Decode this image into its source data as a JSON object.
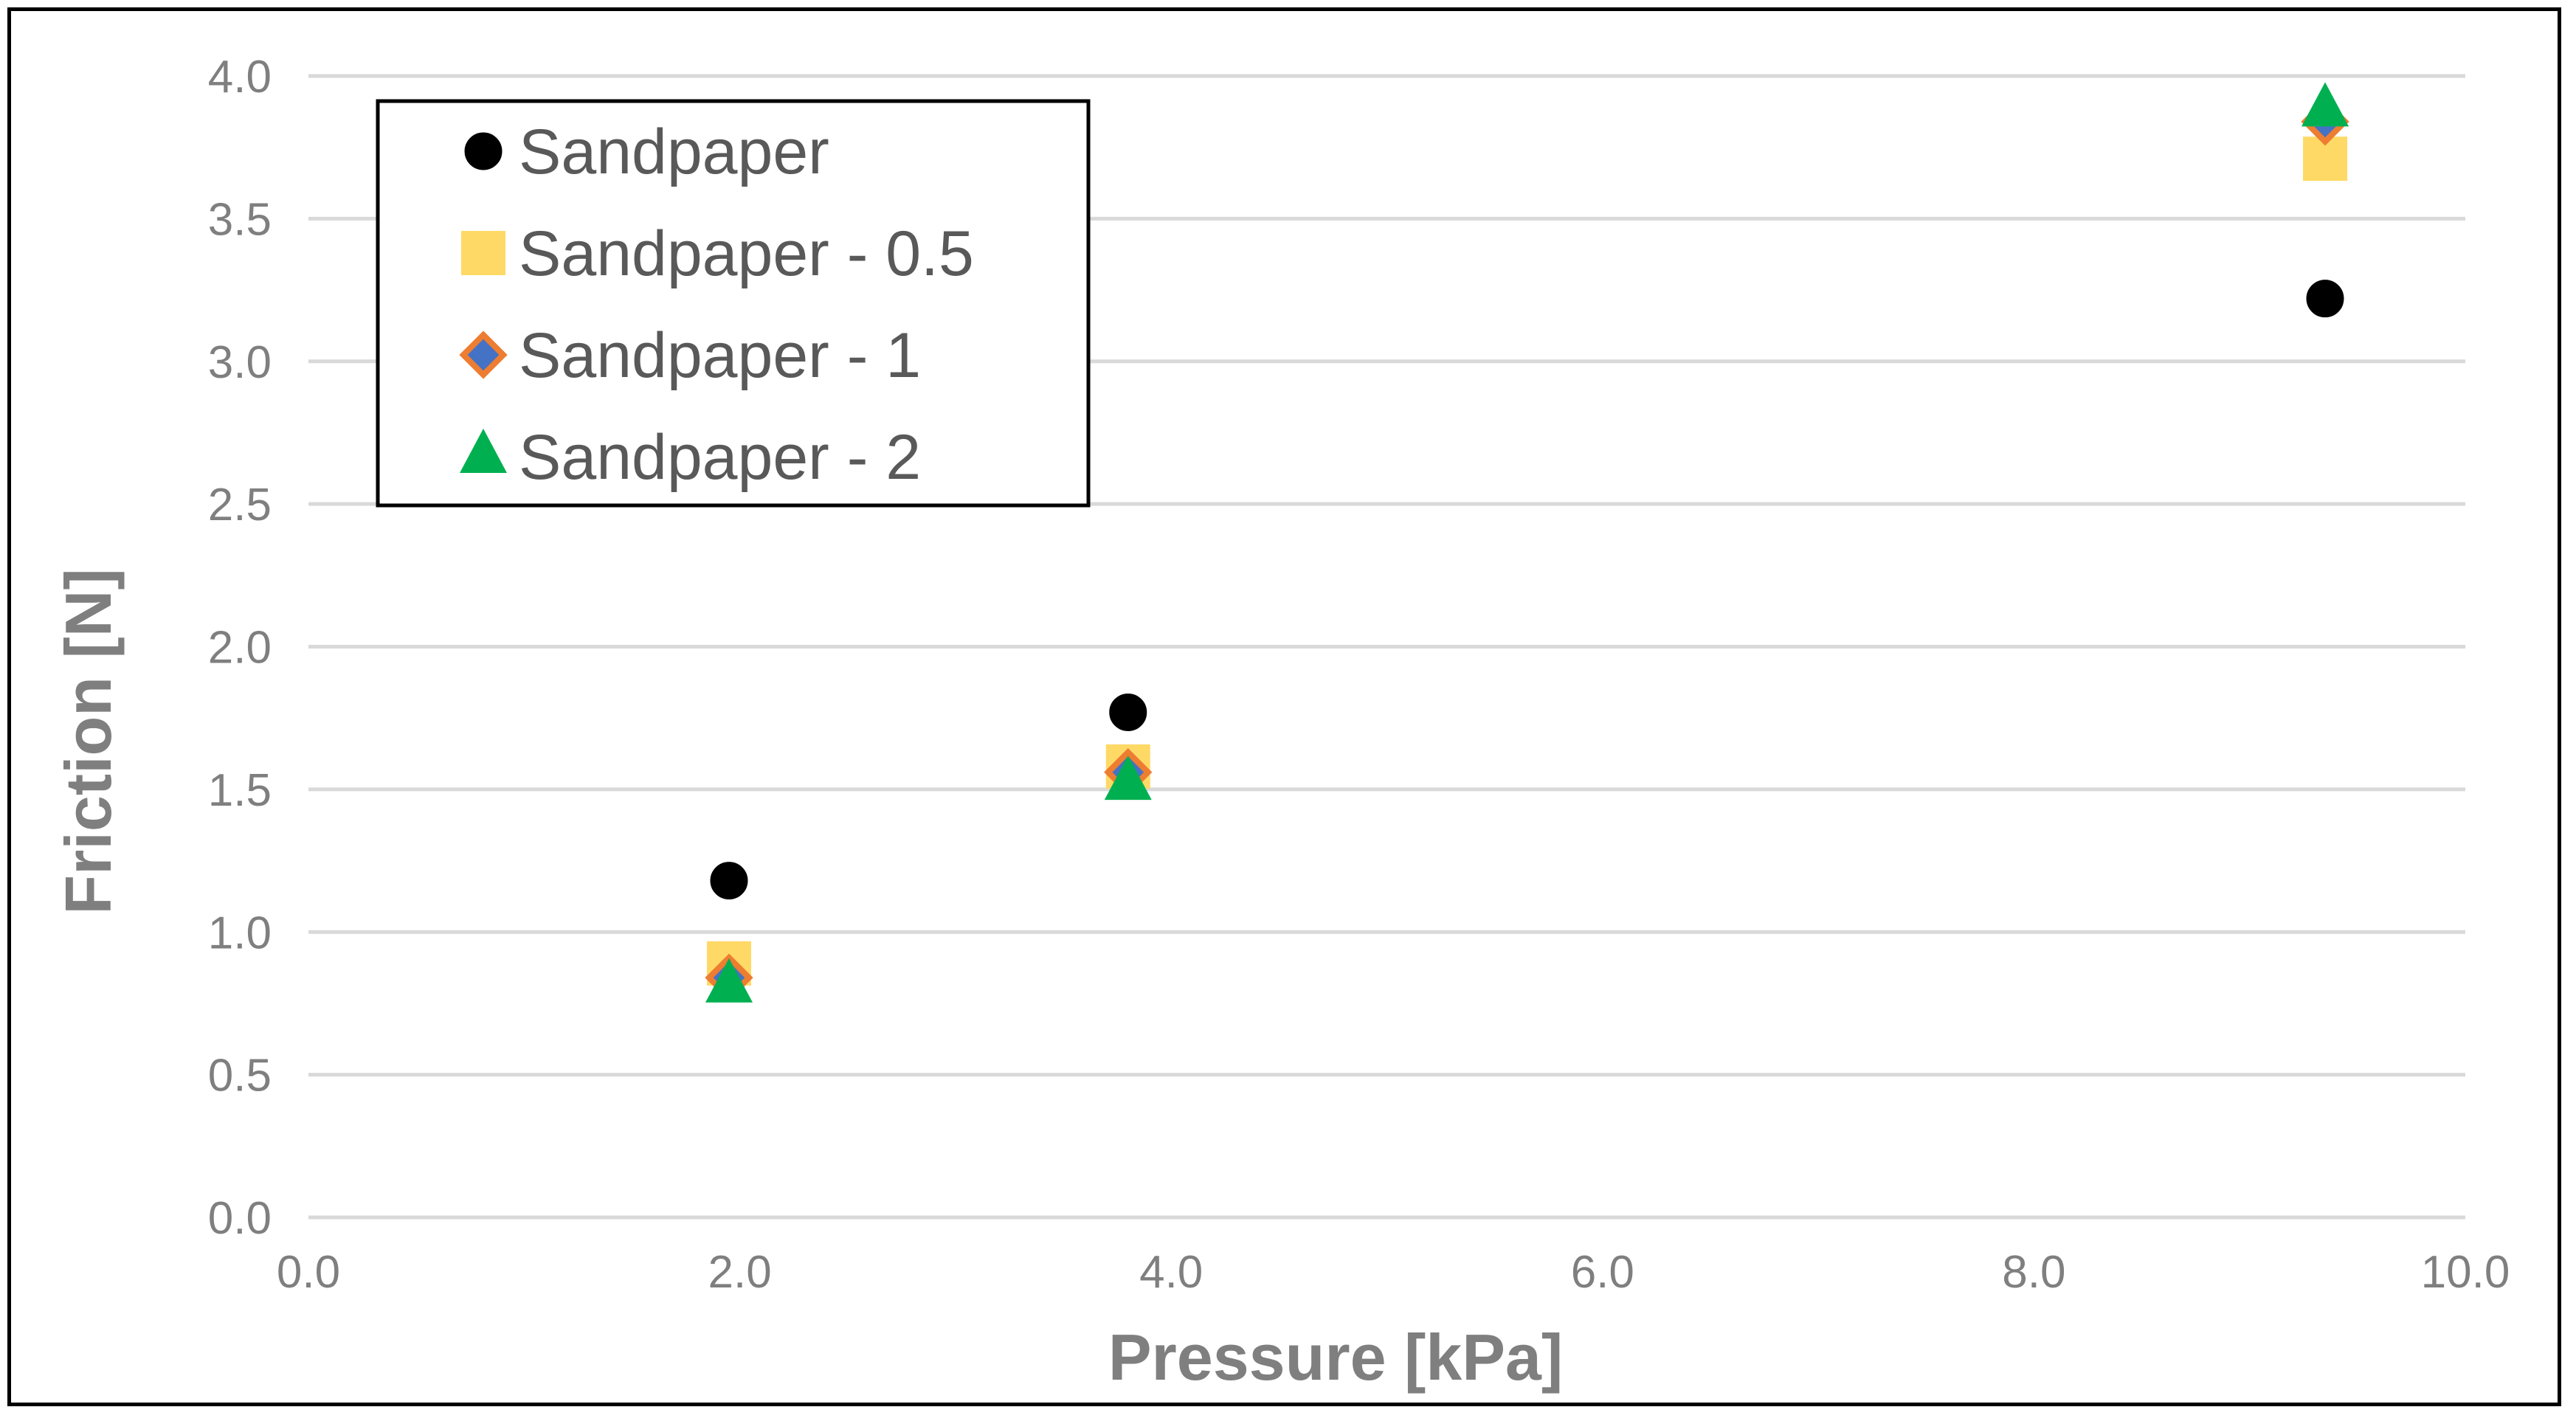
{
  "chart_data": {
    "type": "scatter",
    "xlabel": "Pressure [kPa]",
    "ylabel": "Friction [N]",
    "xlim": [
      0,
      10
    ],
    "ylim": [
      0,
      4
    ],
    "x_ticks": [
      "0.0",
      "2.0",
      "4.0",
      "6.0",
      "8.0",
      "10.0"
    ],
    "y_ticks": [
      "0.0",
      "0.5",
      "1.0",
      "1.5",
      "2.0",
      "2.5",
      "3.0",
      "3.5",
      "4.0"
    ],
    "grid": "horizontal",
    "legend_position": "top-left",
    "series": [
      {
        "name": "Sandpaper",
        "marker": "circle",
        "color": "#000000",
        "x": [
          1.95,
          3.8,
          9.35
        ],
        "y": [
          1.18,
          1.77,
          3.22
        ]
      },
      {
        "name": "Sandpaper - 0.5",
        "marker": "square",
        "color": "#FFD966",
        "x": [
          1.95,
          3.8,
          9.35
        ],
        "y": [
          0.89,
          1.58,
          3.71
        ]
      },
      {
        "name": "Sandpaper - 1",
        "marker": "diamond",
        "color": "#4472C4",
        "edge_color": "#ED7D31",
        "x": [
          1.95,
          3.8,
          9.35
        ],
        "y": [
          0.84,
          1.56,
          3.84
        ]
      },
      {
        "name": "Sandpaper - 2",
        "marker": "triangle",
        "color": "#00B050",
        "x": [
          1.95,
          3.8,
          9.35
        ],
        "y": [
          0.81,
          1.52,
          3.88
        ]
      }
    ]
  }
}
